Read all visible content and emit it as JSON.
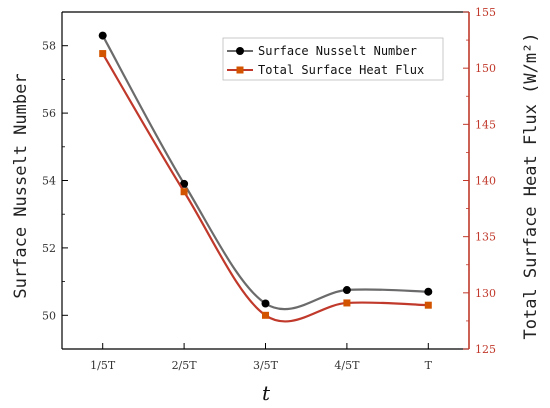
{
  "chart_data": {
    "type": "line",
    "categories": [
      "1/5T",
      "2/5T",
      "3/5T",
      "4/5T",
      "T"
    ],
    "xlabel": "t",
    "ylabel_left": "Surface Nusselt Number",
    "ylabel_right": "Total Surface Heat Flux (W/m²)",
    "ylim_left": [
      49,
      59
    ],
    "yticks_left": [
      50,
      52,
      54,
      56,
      58
    ],
    "ylim_right": [
      125,
      155
    ],
    "yticks_right": [
      125,
      130,
      135,
      140,
      145,
      150,
      155
    ],
    "series": [
      {
        "name": "Surface Nusselt Number",
        "axis": "left",
        "values": [
          58.3,
          53.9,
          50.35,
          50.75,
          50.7
        ],
        "color": "#6b6b6b",
        "marker": "circle",
        "marker_color": "#000000"
      },
      {
        "name": "Total Surface Heat Flux",
        "axis": "right",
        "values": [
          151.3,
          139.0,
          128.0,
          129.1,
          128.9
        ],
        "color": "#c0392b",
        "marker": "square",
        "marker_color": "#d35400"
      }
    ],
    "legend_position": "top-right",
    "grid": false,
    "right_axis_color": "#c0392b"
  }
}
